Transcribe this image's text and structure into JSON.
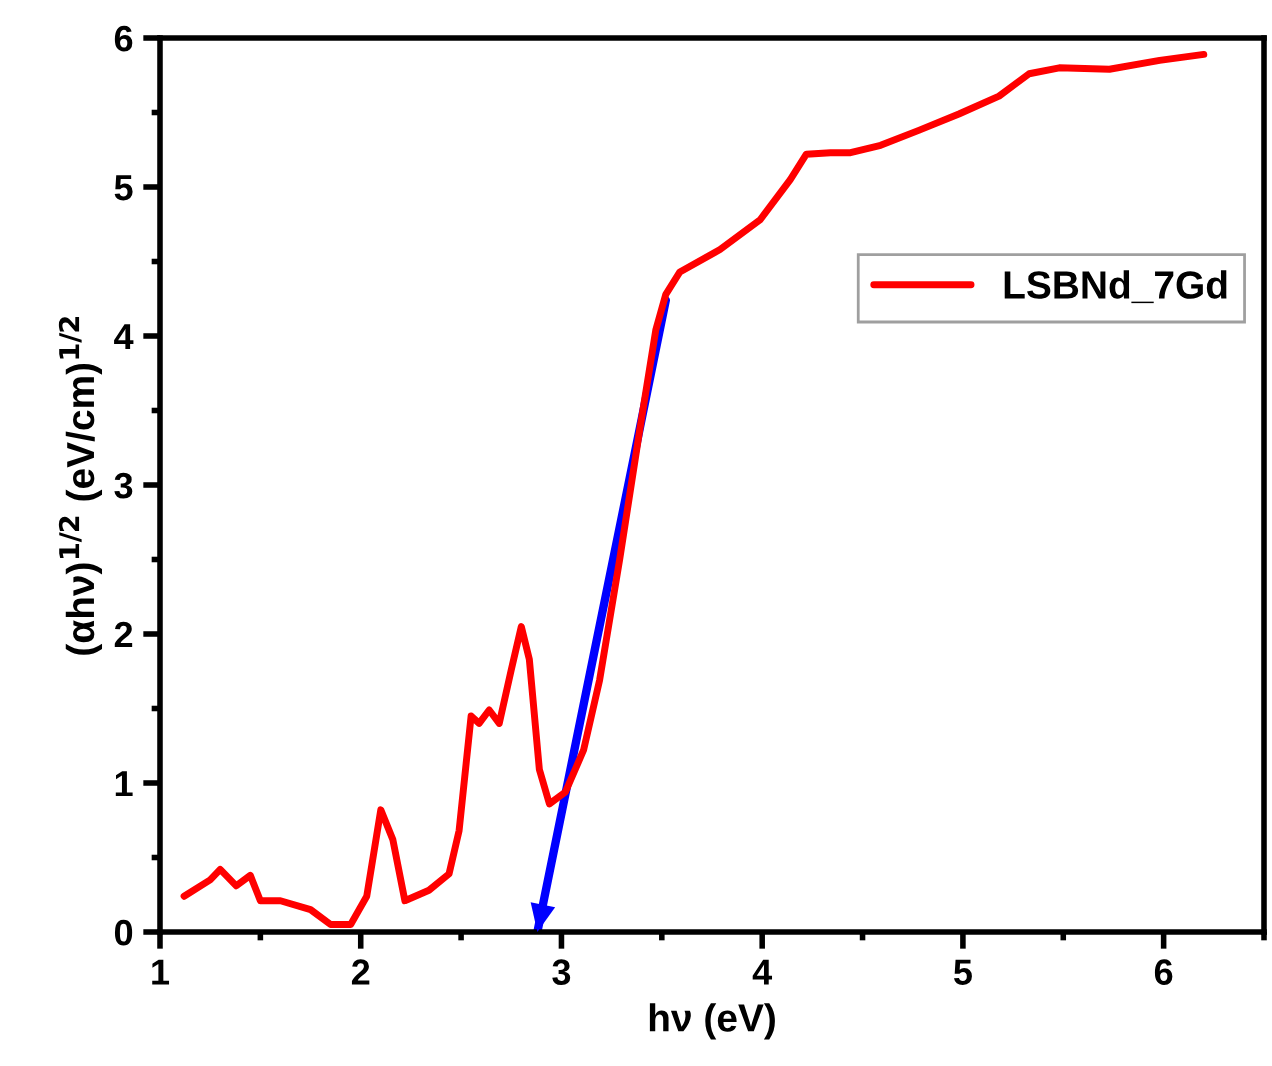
{
  "chart_data": {
    "type": "line",
    "xlabel": "hν (eV)",
    "ylabel": "(αhν)$^{1/2}$ (eV/cm)$^{1/2}$",
    "xlim": [
      1,
      6.5
    ],
    "xticks": [
      1,
      2,
      3,
      4,
      5,
      6
    ],
    "ylim": [
      0,
      6
    ],
    "yticks": [
      0,
      1,
      2,
      3,
      4,
      5,
      6
    ],
    "grid": false,
    "legend": "right",
    "series": [
      {
        "name": "LSBNd_7Gd",
        "color": "#ff0000",
        "x": [
          1.12,
          1.25,
          1.3,
          1.38,
          1.45,
          1.5,
          1.6,
          1.75,
          1.85,
          1.95,
          2.03,
          2.1,
          2.16,
          2.22,
          2.34,
          2.44,
          2.49,
          2.55,
          2.59,
          2.64,
          2.69,
          2.75,
          2.8,
          2.84,
          2.89,
          2.94,
          3.02,
          3.11,
          3.19,
          3.29,
          3.39,
          3.47,
          3.52,
          3.59,
          3.79,
          3.99,
          4.14,
          4.22,
          4.34,
          4.44,
          4.59,
          4.78,
          4.98,
          5.18,
          5.33,
          5.48,
          5.73,
          5.98,
          6.2
        ],
        "values": [
          0.24,
          0.35,
          0.42,
          0.31,
          0.38,
          0.21,
          0.21,
          0.15,
          0.05,
          0.05,
          0.24,
          0.82,
          0.62,
          0.21,
          0.28,
          0.39,
          0.68,
          1.45,
          1.4,
          1.49,
          1.4,
          1.76,
          2.05,
          1.83,
          1.09,
          0.86,
          0.94,
          1.22,
          1.69,
          2.5,
          3.37,
          4.04,
          4.28,
          4.43,
          4.58,
          4.78,
          5.05,
          5.22,
          5.23,
          5.23,
          5.28,
          5.38,
          5.49,
          5.61,
          5.76,
          5.8,
          5.79,
          5.85,
          5.89
        ]
      },
      {
        "type": "line",
        "color": "#0000ff",
        "x": [
          3.52,
          2.88
        ],
        "values": [
          4.24,
          0.0
        ]
      }
    ]
  }
}
